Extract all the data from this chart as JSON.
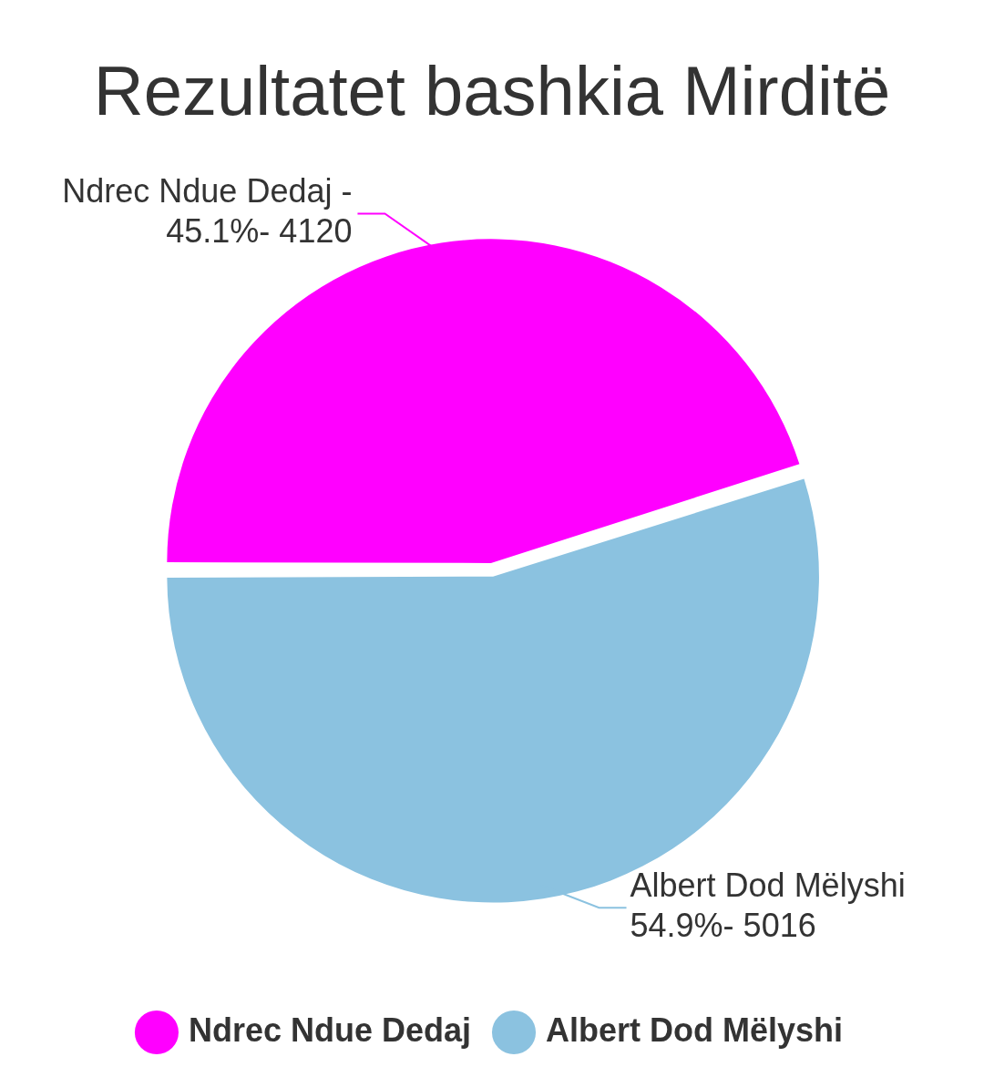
{
  "chart_data": {
    "type": "pie",
    "title": "Rezultatet bashkia Mirditë",
    "categories": [
      "Ndrec Ndue Dedaj",
      "Albert Dod Mëlyshi"
    ],
    "values": [
      45.1,
      54.9
    ],
    "colors": [
      "#ff00ff",
      "#8bc2e0"
    ],
    "annotations": [
      "Ndrec Ndue Dedaj - 45.1%- 4120",
      "Albert Dod Mëlyshi 54.9%- 5016"
    ],
    "legend": "bottom"
  }
}
